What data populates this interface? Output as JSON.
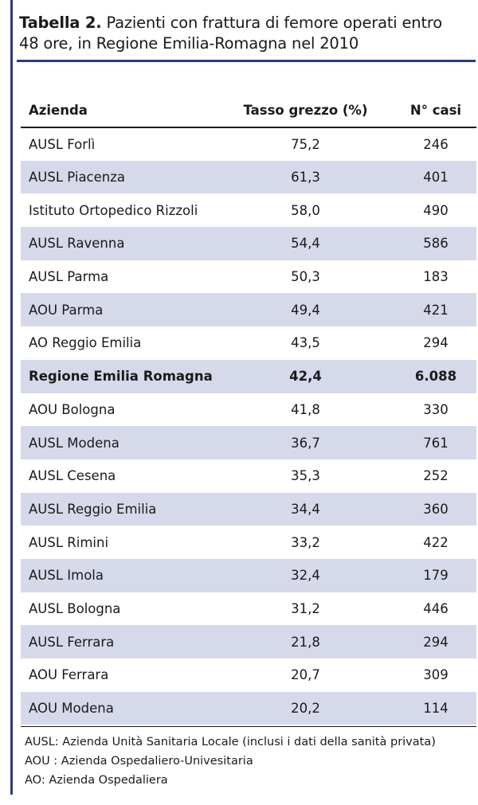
{
  "title": {
    "label": "Tabella 2.",
    "text": "Pazienti con frattura di femore operati entro 48 ore, in Regione Emilia-Romagna nel 2010"
  },
  "table": {
    "headers": [
      "Azienda",
      "Tasso grezzo (%)",
      "N° casi"
    ],
    "rows": [
      [
        "AUSL Forlì",
        "75,2",
        "246"
      ],
      [
        "AUSL Piacenza",
        "61,3",
        "401"
      ],
      [
        "Istituto Ortopedico Rizzoli",
        "58,0",
        "490"
      ],
      [
        "AUSL Ravenna",
        "54,4",
        "586"
      ],
      [
        "AUSL Parma",
        "50,3",
        "183"
      ],
      [
        "AOU Parma",
        "49,4",
        "421"
      ],
      [
        "AO Reggio Emilia",
        "43,5",
        "294"
      ],
      [
        "Regione Emilia Romagna",
        "42,4",
        "6.088"
      ],
      [
        "AOU Bologna",
        "41,8",
        "330"
      ],
      [
        "AUSL Modena",
        "36,7",
        "761"
      ],
      [
        "AUSL Cesena",
        "35,3",
        "252"
      ],
      [
        "AUSL Reggio Emilia",
        "34,4",
        "360"
      ],
      [
        "AUSL Rimini",
        "33,2",
        "422"
      ],
      [
        "AUSL Imola",
        "32,4",
        "179"
      ],
      [
        "AUSL Bologna",
        "31,2",
        "446"
      ],
      [
        "AUSL Ferrara",
        "21,8",
        "294"
      ],
      [
        "AOU Ferrara",
        "20,7",
        "309"
      ],
      [
        "AOU Modena",
        "20,2",
        "114"
      ]
    ]
  },
  "notes": [
    "AUSL: Azienda Unità Sanitaria Locale (inclusi i dati della sanità privata)",
    "AOU : Azienda Ospedaliero-Univesitaria",
    "AO: Azienda Ospedaliera"
  ],
  "colors": {
    "accent": "#2b3d7e",
    "stripe": "#d6d9ea"
  }
}
